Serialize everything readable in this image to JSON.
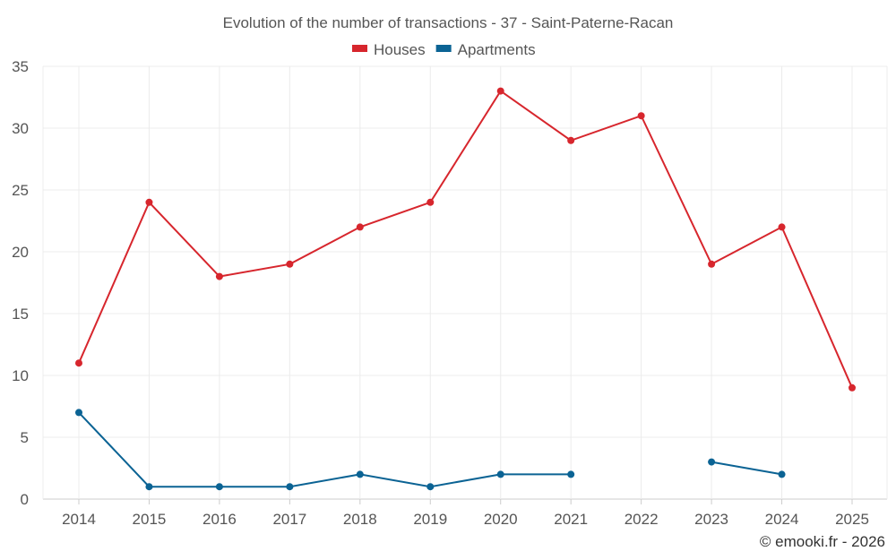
{
  "chart_data": {
    "type": "line",
    "title": "Evolution of the number of transactions - 37 - Saint-Paterne-Racan",
    "categories": [
      "2014",
      "2015",
      "2016",
      "2017",
      "2018",
      "2019",
      "2020",
      "2021",
      "2022",
      "2023",
      "2024",
      "2025"
    ],
    "series": [
      {
        "name": "Houses",
        "color": "#d7262d",
        "values": [
          11,
          24,
          18,
          19,
          22,
          24,
          33,
          29,
          31,
          19,
          22,
          9
        ]
      },
      {
        "name": "Apartments",
        "color": "#0b6394",
        "values": [
          7,
          1,
          1,
          1,
          2,
          1,
          2,
          2,
          null,
          3,
          2,
          null
        ]
      }
    ],
    "ylim": [
      0,
      35
    ],
    "yticks": [
      "0",
      "5",
      "10",
      "15",
      "20",
      "25",
      "30",
      "35"
    ],
    "xlabel": "",
    "ylabel": "",
    "grid": true,
    "legend": "top-center"
  },
  "credit": "© emooki.fr - 2026"
}
